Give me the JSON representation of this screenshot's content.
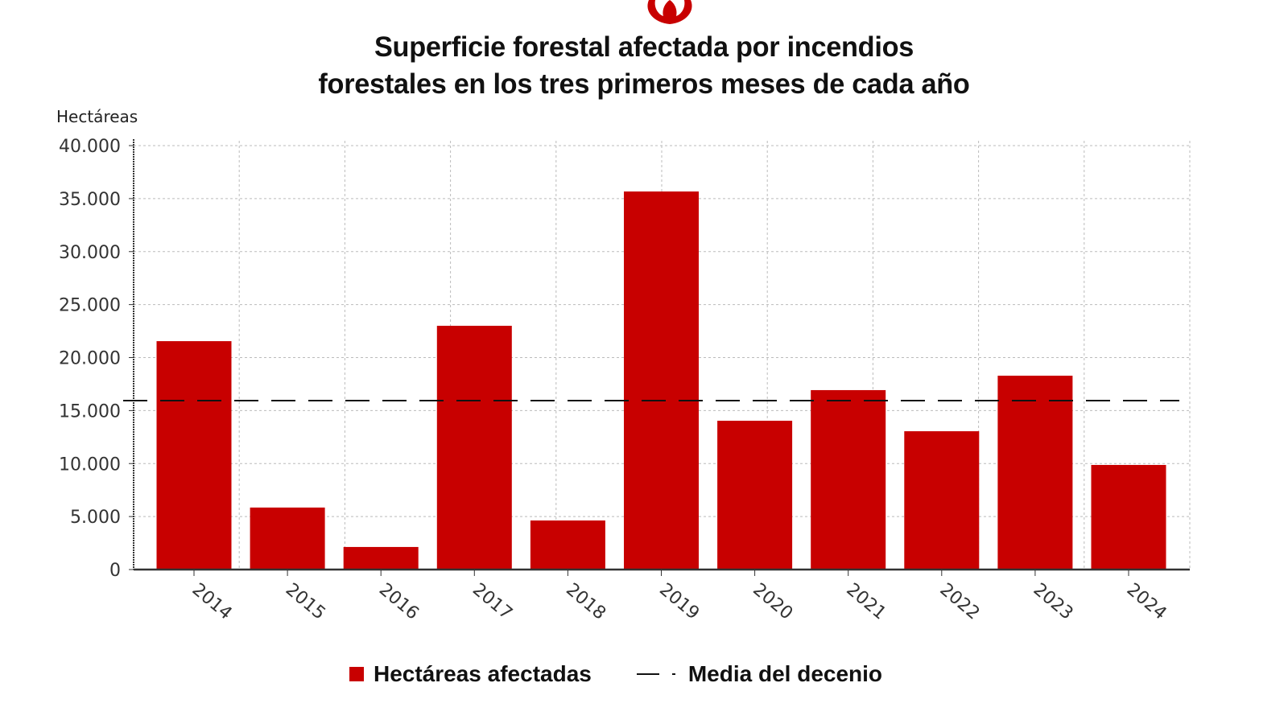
{
  "icon": "fire-icon",
  "title_lines": [
    "Superficie forestal afectada por incendios",
    "forestales en los tres primeros meses de cada año"
  ],
  "chart_data": {
    "type": "bar",
    "title": "Superficie forestal afectada por incendios forestales en los tres primeros meses de cada año",
    "ylabel": "Hectáreas",
    "xlabel": "",
    "categories": [
      "2014",
      "2015",
      "2016",
      "2017",
      "2018",
      "2019",
      "2020",
      "2021",
      "2022",
      "2023",
      "2024"
    ],
    "series": [
      {
        "name": "Hectáreas afectadas",
        "values": [
          21550,
          5850,
          2130,
          23000,
          4630,
          35670,
          14040,
          16930,
          13050,
          18290,
          9870
        ],
        "color": "#c80000"
      }
    ],
    "reference_lines": [
      {
        "name": "Media del decenio",
        "value": 15940,
        "style": "dashed",
        "color": "#111111"
      }
    ],
    "ylim": [
      0,
      40000
    ],
    "yticks": [
      "0",
      "5.000",
      "10.000",
      "15.000",
      "20.000",
      "25.000",
      "30.000",
      "35.000",
      "40.000"
    ],
    "grid": true,
    "legend_position": "bottom"
  },
  "legend": {
    "bars": "Hectáreas afectadas",
    "line": "Media del decenio"
  }
}
